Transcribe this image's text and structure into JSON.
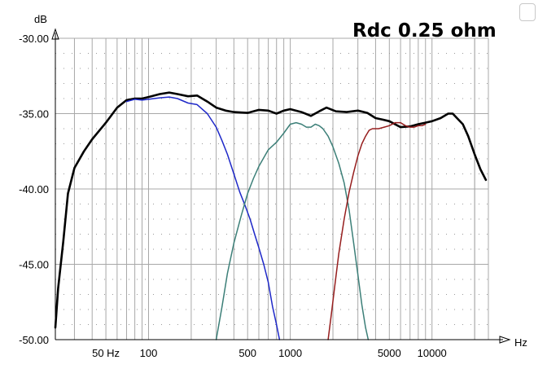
{
  "chart_data": {
    "type": "line",
    "title": "",
    "annotation": "Rdc 0.25 ohm",
    "xlabel": "Hz",
    "ylabel": "dB",
    "x_scale": "log",
    "xlim": [
      22,
      25000.0
    ],
    "ylim": [
      -50,
      -30
    ],
    "x_tick_labels": [
      {
        "value": 50,
        "label": "50 Hz"
      },
      {
        "value": 100,
        "label": "100"
      },
      {
        "value": 500,
        "label": "500"
      },
      {
        "value": 1000,
        "label": "1000"
      },
      {
        "value": 5000,
        "label": "5000"
      },
      {
        "value": 10000,
        "label": "10000"
      }
    ],
    "y_tick_labels": [
      {
        "value": -30,
        "label": "-30.00"
      },
      {
        "value": -35,
        "label": "-35.00"
      },
      {
        "value": -40,
        "label": "-40.00"
      },
      {
        "value": -45,
        "label": "-45.00"
      },
      {
        "value": -50,
        "label": "-50.00"
      }
    ],
    "grid": true,
    "series": [
      {
        "color": "#000000",
        "width": 2.6,
        "points": [
          [
            22,
            -49.2
          ],
          [
            23,
            -46.6
          ],
          [
            25,
            -43.5
          ],
          [
            27,
            -40.3
          ],
          [
            30,
            -38.6
          ],
          [
            35,
            -37.5
          ],
          [
            40,
            -36.7
          ],
          [
            50,
            -35.6
          ],
          [
            60,
            -34.6
          ],
          [
            70,
            -34.1
          ],
          [
            80,
            -34.0
          ],
          [
            90,
            -34.0
          ],
          [
            100,
            -33.9
          ],
          [
            120,
            -33.7
          ],
          [
            140,
            -33.6
          ],
          [
            160,
            -33.7
          ],
          [
            190,
            -33.85
          ],
          [
            220,
            -33.8
          ],
          [
            260,
            -34.2
          ],
          [
            300,
            -34.6
          ],
          [
            350,
            -34.8
          ],
          [
            400,
            -34.9
          ],
          [
            500,
            -34.95
          ],
          [
            600,
            -34.75
          ],
          [
            700,
            -34.8
          ],
          [
            800,
            -35.0
          ],
          [
            900,
            -34.8
          ],
          [
            1000,
            -34.7
          ],
          [
            1200,
            -34.9
          ],
          [
            1400,
            -35.15
          ],
          [
            1600,
            -34.85
          ],
          [
            1800,
            -34.6
          ],
          [
            2100,
            -34.85
          ],
          [
            2500,
            -34.9
          ],
          [
            3000,
            -34.8
          ],
          [
            3500,
            -34.95
          ],
          [
            4000,
            -35.3
          ],
          [
            4500,
            -35.4
          ],
          [
            5000,
            -35.5
          ],
          [
            6000,
            -35.9
          ],
          [
            7000,
            -35.85
          ],
          [
            8000,
            -35.7
          ],
          [
            9000,
            -35.6
          ],
          [
            10000,
            -35.5
          ],
          [
            11500,
            -35.3
          ],
          [
            13000,
            -35.0
          ],
          [
            14000,
            -35.0
          ],
          [
            15000,
            -35.3
          ],
          [
            16500,
            -35.7
          ],
          [
            18000,
            -36.5
          ],
          [
            20000,
            -37.7
          ],
          [
            22000,
            -38.7
          ],
          [
            24000,
            -39.4
          ]
        ]
      },
      {
        "color": "#1e28c8",
        "width": 1.5,
        "points": [
          [
            70,
            -34.2
          ],
          [
            80,
            -34.05
          ],
          [
            90,
            -34.1
          ],
          [
            100,
            -34.05
          ],
          [
            120,
            -33.95
          ],
          [
            140,
            -33.9
          ],
          [
            160,
            -34.0
          ],
          [
            190,
            -34.3
          ],
          [
            220,
            -34.4
          ],
          [
            260,
            -35.0
          ],
          [
            300,
            -35.9
          ],
          [
            330,
            -36.8
          ],
          [
            360,
            -37.7
          ],
          [
            400,
            -39.0
          ],
          [
            440,
            -40.2
          ],
          [
            480,
            -41.1
          ],
          [
            520,
            -42.0
          ],
          [
            560,
            -43.0
          ],
          [
            600,
            -43.9
          ],
          [
            650,
            -45.0
          ],
          [
            700,
            -46.2
          ],
          [
            750,
            -47.8
          ],
          [
            800,
            -49.0
          ],
          [
            840,
            -50.0
          ]
        ]
      },
      {
        "color": "#3c7f78",
        "width": 1.5,
        "points": [
          [
            300,
            -50.0
          ],
          [
            330,
            -47.8
          ],
          [
            360,
            -45.6
          ],
          [
            400,
            -43.6
          ],
          [
            450,
            -41.8
          ],
          [
            500,
            -40.3
          ],
          [
            550,
            -39.3
          ],
          [
            600,
            -38.5
          ],
          [
            700,
            -37.4
          ],
          [
            800,
            -36.9
          ],
          [
            900,
            -36.3
          ],
          [
            1000,
            -35.7
          ],
          [
            1100,
            -35.6
          ],
          [
            1200,
            -35.7
          ],
          [
            1300,
            -35.9
          ],
          [
            1400,
            -35.9
          ],
          [
            1500,
            -35.7
          ],
          [
            1600,
            -35.8
          ],
          [
            1700,
            -36.0
          ],
          [
            1850,
            -36.5
          ],
          [
            2000,
            -37.2
          ],
          [
            2200,
            -38.3
          ],
          [
            2400,
            -39.6
          ],
          [
            2600,
            -41.4
          ],
          [
            2800,
            -43.6
          ],
          [
            3000,
            -45.7
          ],
          [
            3200,
            -47.7
          ],
          [
            3400,
            -49.2
          ],
          [
            3550,
            -50.0
          ]
        ]
      },
      {
        "color": "#961e1e",
        "width": 1.5,
        "points": [
          [
            1850,
            -50.0
          ],
          [
            1950,
            -48.3
          ],
          [
            2050,
            -46.6
          ],
          [
            2200,
            -44.3
          ],
          [
            2400,
            -42.0
          ],
          [
            2600,
            -40.2
          ],
          [
            2800,
            -38.9
          ],
          [
            3000,
            -37.8
          ],
          [
            3200,
            -37.0
          ],
          [
            3400,
            -36.5
          ],
          [
            3600,
            -36.1
          ],
          [
            3800,
            -36.0
          ],
          [
            4200,
            -36.0
          ],
          [
            4600,
            -35.9
          ],
          [
            5000,
            -35.8
          ],
          [
            5500,
            -35.6
          ],
          [
            6000,
            -35.6
          ],
          [
            6500,
            -35.8
          ],
          [
            7000,
            -35.9
          ],
          [
            7500,
            -35.9
          ],
          [
            8000,
            -35.8
          ],
          [
            8500,
            -35.8
          ],
          [
            9000,
            -35.7
          ]
        ]
      }
    ]
  }
}
